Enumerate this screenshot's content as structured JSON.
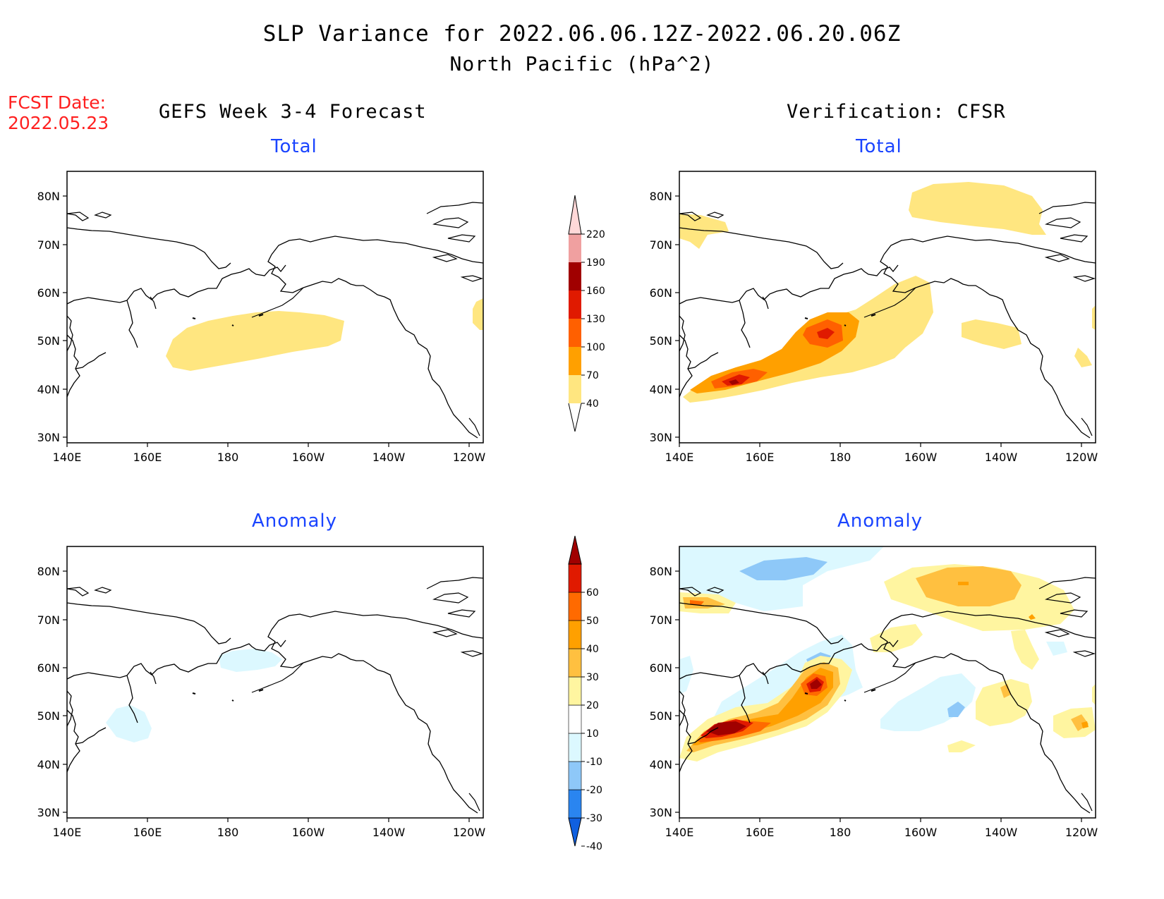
{
  "title_line1": "SLP Variance for 2022.06.06.12Z-2022.06.20.06Z",
  "title_line2": "North Pacific (hPa^2)",
  "fcst_line1": "FCST Date:",
  "fcst_line2": "2022.05.23",
  "left_header": "GEFS Week 3-4 Forecast",
  "right_header": "Verification: CFSR",
  "panels": {
    "top_left_title": "Total",
    "top_right_title": "Total",
    "bottom_left_title": "Anomaly",
    "bottom_right_title": "Anomaly"
  },
  "axes": {
    "lon_labels": [
      "140E",
      "160E",
      "180",
      "160W",
      "140W",
      "120W"
    ],
    "lat_labels": [
      "80N",
      "70N",
      "60N",
      "50N",
      "40N",
      "30N"
    ]
  },
  "colorbar_total": {
    "levels": [
      "40",
      "70",
      "100",
      "130",
      "160",
      "190",
      "220"
    ],
    "colors": [
      "#ffe680",
      "#ffa000",
      "#ff6000",
      "#e01a00",
      "#a00000",
      "#f0a0a0",
      "#ffd8d8"
    ]
  },
  "colorbar_anomaly": {
    "levels": [
      "-40",
      "-30",
      "-20",
      "-10",
      "10",
      "20",
      "30",
      "40",
      "50",
      "60"
    ],
    "colors": [
      "#1060e0",
      "#2a85f0",
      "#8ec8f8",
      "#dcf8ff",
      "#ffffff",
      "#fff5a0",
      "#ffc040",
      "#ffa000",
      "#ff6a00",
      "#e01a00",
      "#a00000"
    ]
  }
}
